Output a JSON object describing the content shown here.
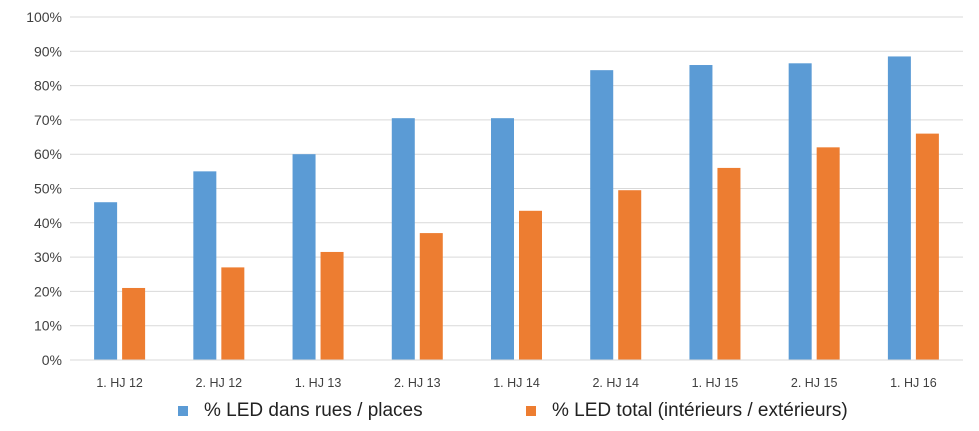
{
  "chart_data": {
    "type": "bar",
    "title": "",
    "xlabel": "",
    "ylabel": "",
    "categories": [
      "1. HJ 12",
      "2. HJ 12",
      "1. HJ 13",
      "2. HJ 13",
      "1. HJ 14",
      "2. HJ 14",
      "1. HJ 15",
      "2. HJ 15",
      "1. HJ 16"
    ],
    "series": [
      {
        "name": "% LED dans rues / places",
        "color": "#5b9bd5",
        "values": [
          46,
          55,
          60,
          70.5,
          70.5,
          84.5,
          86,
          86.5,
          88.5
        ]
      },
      {
        "name": "% LED total (intérieurs / extérieurs)",
        "color": "#ed7d31",
        "values": [
          21,
          27,
          31.5,
          37,
          43.5,
          49.5,
          56,
          62,
          66
        ]
      }
    ],
    "ylim": [
      0,
      100
    ],
    "yticks": [
      0,
      10,
      20,
      30,
      40,
      50,
      60,
      70,
      80,
      90,
      100
    ],
    "ytick_format": "%",
    "grid": true,
    "legend_position": "bottom"
  }
}
